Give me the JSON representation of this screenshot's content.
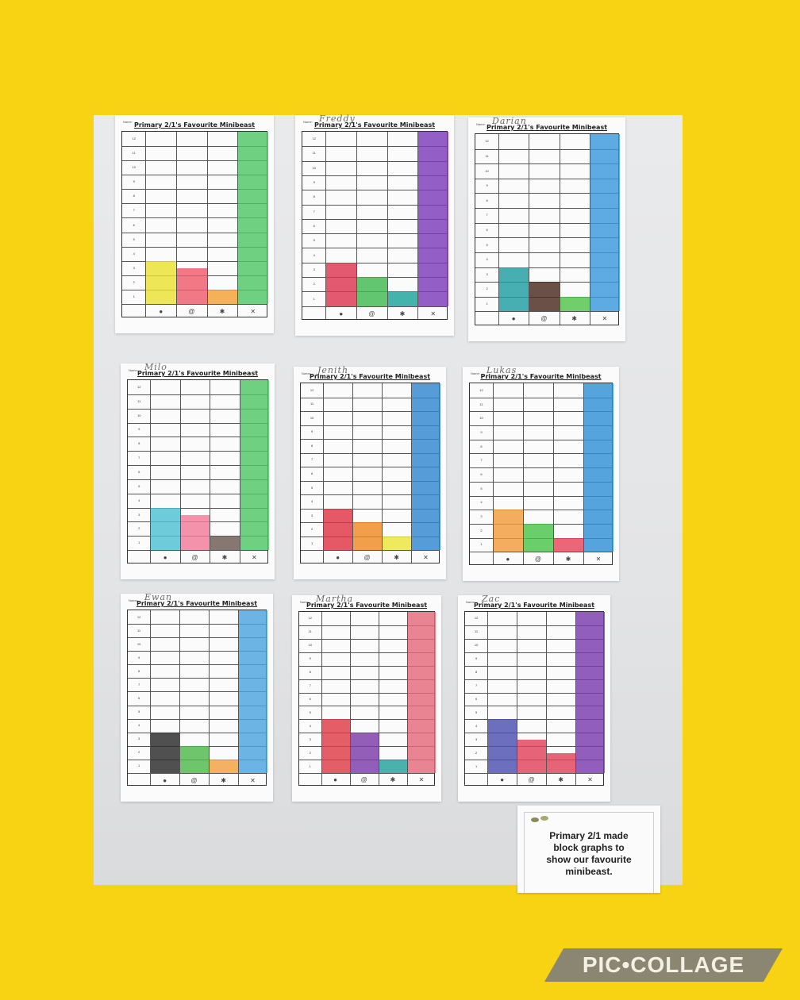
{
  "sheet_title": "Primary 2/1's Favourite Minibeast",
  "name_label": "Name:",
  "axis_numbers": [
    "12",
    "11",
    "10",
    "9",
    "8",
    "7",
    "6",
    "5",
    "4",
    "3",
    "2",
    "1"
  ],
  "minibeast_icons": [
    "beetle-icon",
    "snail-icon",
    "bee-icon",
    "butterfly-icon"
  ],
  "colors": {
    "background": "#f7d313",
    "brand_bar": "#8b8672"
  },
  "sheets": [
    {
      "pupil": "",
      "bars": [
        {
          "value": 3,
          "color": "#e9e233"
        },
        {
          "value": 2.5,
          "color": "#ee5a6a"
        },
        {
          "value": 1,
          "color": "#f2a032"
        },
        {
          "value": 12,
          "color": "#4fc666"
        }
      ]
    },
    {
      "pupil": "Freddy",
      "bars": [
        {
          "value": 3,
          "color": "#dd3550"
        },
        {
          "value": 2,
          "color": "#3fb84f"
        },
        {
          "value": 1,
          "color": "#1aa29a"
        },
        {
          "value": 12,
          "color": "#7b3ab8"
        }
      ]
    },
    {
      "pupil": "Darian",
      "bars": [
        {
          "value": 3,
          "color": "#1e9ea0"
        },
        {
          "value": 2,
          "color": "#4a2a20"
        },
        {
          "value": 1,
          "color": "#52c44a"
        },
        {
          "value": 12,
          "color": "#3b98dd"
        }
      ]
    },
    {
      "pupil": "Milo",
      "bars": [
        {
          "value": 3,
          "color": "#4ebfd1"
        },
        {
          "value": 2.5,
          "color": "#f27a9a"
        },
        {
          "value": 1,
          "color": "#6b5a52"
        },
        {
          "value": 12,
          "color": "#4fc666"
        }
      ]
    },
    {
      "pupil": "Jenith",
      "bars": [
        {
          "value": 3,
          "color": "#df3546"
        },
        {
          "value": 2,
          "color": "#ef8a24"
        },
        {
          "value": 1,
          "color": "#ece43a"
        },
        {
          "value": 12,
          "color": "#2f86d0"
        }
      ]
    },
    {
      "pupil": "Lukas",
      "bars": [
        {
          "value": 3,
          "color": "#f29a3a"
        },
        {
          "value": 2,
          "color": "#49c34a"
        },
        {
          "value": 1,
          "color": "#e9445a"
        },
        {
          "value": 12,
          "color": "#3090d6"
        }
      ]
    },
    {
      "pupil": "Ewan",
      "bars": [
        {
          "value": 3,
          "color": "#2a2a2a"
        },
        {
          "value": 2,
          "color": "#4eb84a"
        },
        {
          "value": 1,
          "color": "#f2a040"
        },
        {
          "value": 12,
          "color": "#4aa4dd"
        }
      ]
    },
    {
      "pupil": "Martha",
      "bars": [
        {
          "value": 4,
          "color": "#de3a46"
        },
        {
          "value": 3,
          "color": "#7a3aa8"
        },
        {
          "value": 1,
          "color": "#20a29a"
        },
        {
          "value": 12,
          "color": "#e46a7a"
        }
      ]
    },
    {
      "pupil": "Zac",
      "bars": [
        {
          "value": 4,
          "color": "#4a4fb0"
        },
        {
          "value": 2.5,
          "color": "#e0415a"
        },
        {
          "value": 1.5,
          "color": "#e0415a"
        },
        {
          "value": 12,
          "color": "#7a3aac"
        }
      ]
    }
  ],
  "caption": "Primary 2/1 made\nblock graphs to\nshow our favourite\nminibeast.",
  "brand": "PIC•COLLAGE"
}
